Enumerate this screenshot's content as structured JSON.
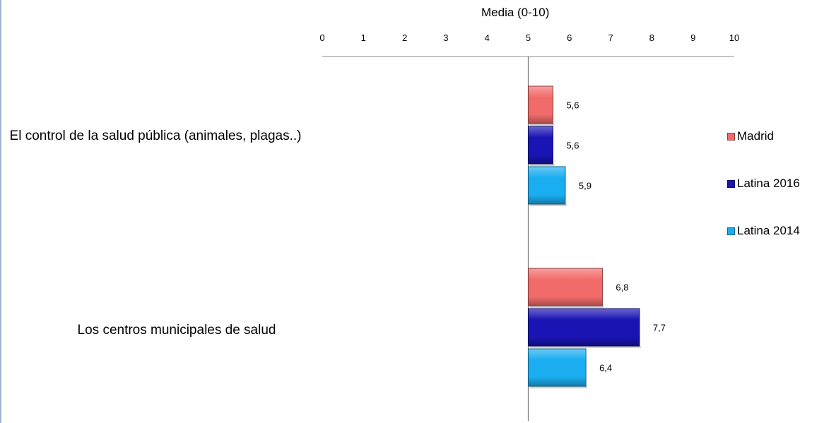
{
  "chart_data": {
    "type": "bar",
    "orientation": "horizontal",
    "title": "",
    "xlabel": "Media (0-10)",
    "ylabel": "",
    "xlim": [
      0,
      10
    ],
    "baseline": 5,
    "ticks": [
      "0",
      "1",
      "2",
      "3",
      "4",
      "5",
      "6",
      "7",
      "8",
      "9",
      "10"
    ],
    "tick_values": [
      0,
      1,
      2,
      3,
      4,
      5,
      6,
      7,
      8,
      9,
      10
    ],
    "categories": [
      "El control de la salud pública (animales, plagas..)",
      "Los  centros municipales de salud"
    ],
    "series": [
      {
        "name": "Madrid",
        "color": "#f26b6b",
        "values": [
          5.6,
          6.8
        ],
        "labels": [
          "5,6",
          "6,8"
        ]
      },
      {
        "name": "Latina 2016",
        "color": "#1a14b4",
        "values": [
          5.6,
          7.7
        ],
        "labels": [
          "5,6",
          "7,7"
        ]
      },
      {
        "name": "Latina 2014",
        "color": "#1aaef0",
        "values": [
          5.9,
          6.4
        ],
        "labels": [
          "5,9",
          "6,4"
        ]
      }
    ],
    "legend_position": "right",
    "grid": false
  }
}
